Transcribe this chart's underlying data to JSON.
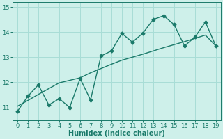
{
  "x": [
    0,
    1,
    2,
    3,
    4,
    5,
    6,
    7,
    8,
    9,
    10,
    11,
    12,
    13,
    14,
    15,
    16,
    17,
    18,
    19
  ],
  "y_zigzag": [
    10.85,
    11.45,
    11.9,
    11.1,
    11.35,
    11.0,
    12.15,
    11.3,
    13.05,
    13.25,
    13.95,
    13.6,
    13.95,
    14.5,
    14.65,
    14.3,
    13.45,
    13.8,
    14.4,
    13.45
  ],
  "y_trend": [
    11.05,
    11.28,
    11.52,
    11.75,
    11.98,
    12.08,
    12.18,
    12.38,
    12.55,
    12.72,
    12.88,
    13.0,
    13.12,
    13.25,
    13.38,
    13.5,
    13.62,
    13.75,
    13.88,
    13.45
  ],
  "line_color": "#1a7a6a",
  "bg_color": "#cef0ea",
  "grid_color": "#a8ddd6",
  "xlabel": "Humidex (Indice chaleur)",
  "ylim": [
    10.5,
    15.2
  ],
  "xlim": [
    -0.5,
    19.5
  ],
  "yticks": [
    11,
    12,
    13,
    14,
    15
  ],
  "xticks": [
    0,
    1,
    2,
    3,
    4,
    5,
    6,
    7,
    8,
    9,
    10,
    11,
    12,
    13,
    14,
    15,
    16,
    17,
    18,
    19
  ],
  "xlabel_fontsize": 7,
  "tick_fontsize": 6
}
